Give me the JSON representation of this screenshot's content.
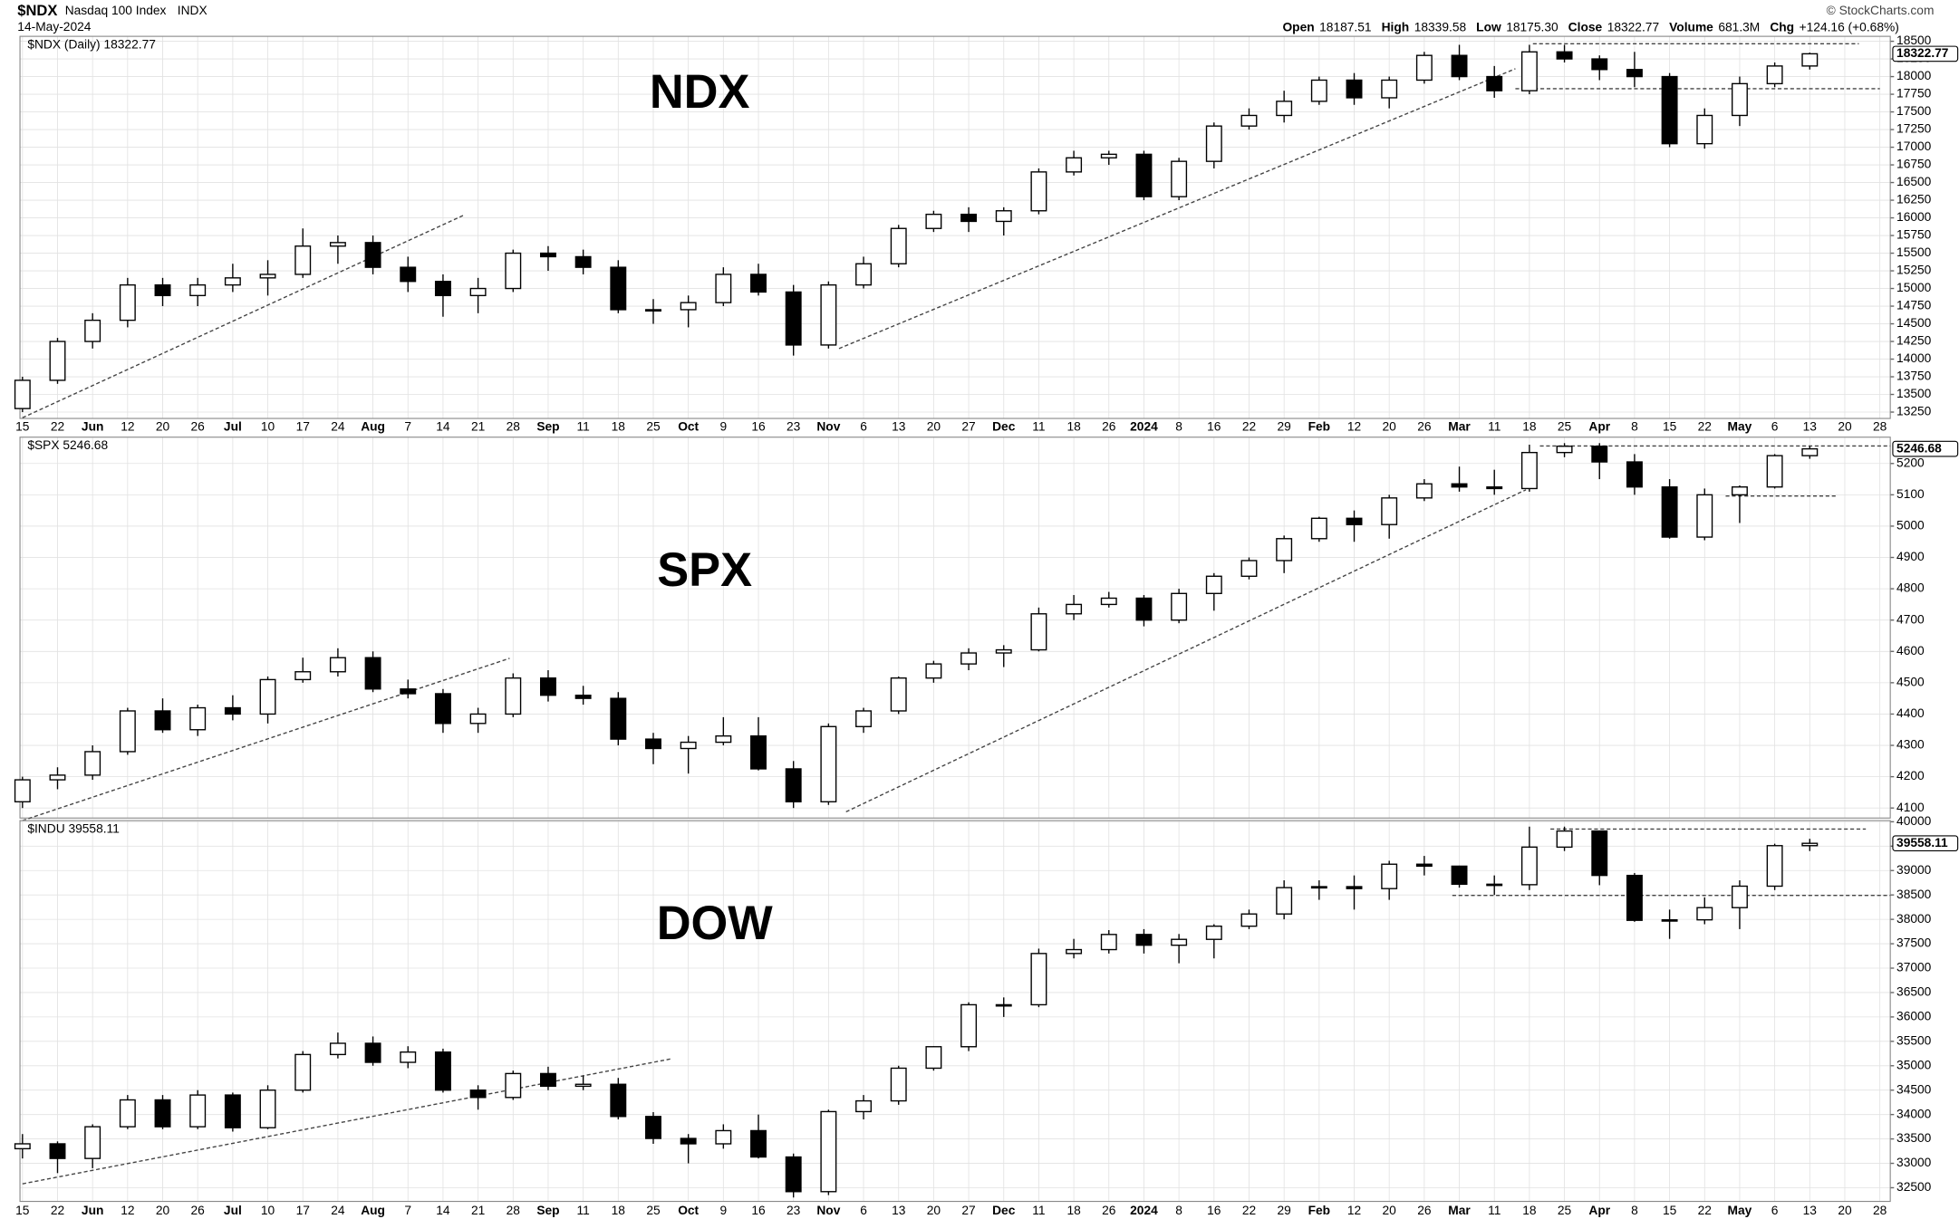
{
  "header": {
    "symbol": "$NDX",
    "name": "Nasdaq 100 Index",
    "exchange": "INDX",
    "date": "14-May-2024",
    "source": "© StockCharts.com",
    "stats": [
      {
        "label": "Open",
        "value": "18187.51"
      },
      {
        "label": "High",
        "value": "18339.58"
      },
      {
        "label": "Low",
        "value": "18175.30"
      },
      {
        "label": "Close",
        "value": "18322.77"
      },
      {
        "label": "Volume",
        "value": "681.3M"
      },
      {
        "label": "Chg",
        "value": "+124.16 (+0.68%)"
      }
    ]
  },
  "chart_data": [
    {
      "type": "candlestick",
      "legend": "$NDX (Daily) 18322.77",
      "annotation": "NDX",
      "up_color": "#ffffff",
      "down_color": "#000000",
      "grid": true,
      "categories": [
        "15",
        "22",
        "Jun",
        "12",
        "20",
        "26",
        "Jul",
        "10",
        "17",
        "24",
        "Aug",
        "7",
        "14",
        "21",
        "28",
        "Sep",
        "11",
        "18",
        "25",
        "Oct",
        "9",
        "16",
        "23",
        "Nov",
        "6",
        "13",
        "20",
        "27",
        "Dec",
        "11",
        "18",
        "26",
        "2024",
        "8",
        "16",
        "22",
        "29",
        "Feb",
        "12",
        "20",
        "26",
        "Mar",
        "11",
        "18",
        "25",
        "Apr",
        "8",
        "15",
        "22",
        "May",
        "6",
        "13",
        "20",
        "28"
      ],
      "ohlc": [
        [
          13300,
          13750,
          13250,
          13700
        ],
        [
          13700,
          14300,
          13650,
          14250
        ],
        [
          14250,
          14650,
          14150,
          14550
        ],
        [
          14550,
          15150,
          14450,
          15050
        ],
        [
          15050,
          15150,
          14750,
          14900
        ],
        [
          14900,
          15150,
          14750,
          15050
        ],
        [
          15050,
          15350,
          14950,
          15150
        ],
        [
          15150,
          15400,
          14900,
          15200
        ],
        [
          15200,
          15850,
          15150,
          15600
        ],
        [
          15600,
          15750,
          15350,
          15650
        ],
        [
          15650,
          15750,
          15200,
          15300
        ],
        [
          15300,
          15450,
          14950,
          15100
        ],
        [
          15100,
          15200,
          14600,
          14900
        ],
        [
          14900,
          15150,
          14650,
          15000
        ],
        [
          15000,
          15550,
          14950,
          15500
        ],
        [
          15500,
          15600,
          15250,
          15450
        ],
        [
          15450,
          15550,
          15200,
          15300
        ],
        [
          15300,
          15400,
          14650,
          14700
        ],
        [
          14700,
          14850,
          14500,
          14700
        ],
        [
          14700,
          14900,
          14450,
          14800
        ],
        [
          14800,
          15300,
          14750,
          15200
        ],
        [
          15200,
          15350,
          14900,
          14950
        ],
        [
          14950,
          15050,
          14050,
          14200
        ],
        [
          14200,
          15100,
          14150,
          15050
        ],
        [
          15050,
          15450,
          15000,
          15350
        ],
        [
          15350,
          15900,
          15300,
          15850
        ],
        [
          15850,
          16100,
          15800,
          16050
        ],
        [
          16050,
          16150,
          15800,
          15950
        ],
        [
          15950,
          16150,
          15750,
          16100
        ],
        [
          16100,
          16700,
          16050,
          16650
        ],
        [
          16650,
          16950,
          16600,
          16850
        ],
        [
          16850,
          16950,
          16750,
          16900
        ],
        [
          16900,
          16950,
          16250,
          16300
        ],
        [
          16300,
          16850,
          16250,
          16800
        ],
        [
          16800,
          17350,
          16700,
          17300
        ],
        [
          17300,
          17550,
          17250,
          17450
        ],
        [
          17450,
          17800,
          17350,
          17650
        ],
        [
          17650,
          18000,
          17600,
          17950
        ],
        [
          17950,
          18050,
          17600,
          17700
        ],
        [
          17700,
          18000,
          17550,
          17950
        ],
        [
          17950,
          18350,
          17900,
          18300
        ],
        [
          18300,
          18450,
          17950,
          18000
        ],
        [
          18000,
          18150,
          17700,
          17800
        ],
        [
          17800,
          18450,
          17750,
          18350
        ],
        [
          18350,
          18450,
          18200,
          18250
        ],
        [
          18250,
          18300,
          17950,
          18100
        ],
        [
          18100,
          18350,
          17850,
          18000
        ],
        [
          18000,
          18050,
          17000,
          17050
        ],
        [
          17050,
          17550,
          16980,
          17450
        ],
        [
          17450,
          18000,
          17300,
          17900
        ],
        [
          17900,
          18200,
          17850,
          18150
        ],
        [
          18150,
          18340,
          18100,
          18322.77
        ],
        null,
        null
      ],
      "ylim": [
        13160,
        18570
      ],
      "yticks": [
        13250,
        13500,
        13750,
        14000,
        14250,
        14500,
        14750,
        15000,
        15250,
        15500,
        15750,
        16000,
        16250,
        16500,
        16750,
        17000,
        17250,
        17500,
        17750,
        18000,
        18250,
        18500
      ],
      "trendlines": [
        {
          "x": [
            0,
            12.6
          ],
          "y": [
            13170,
            16040
          ]
        },
        {
          "x": [
            23.3,
            42.6
          ],
          "y": [
            14150,
            18111
          ]
        },
        {
          "x": [
            43.1,
            52.4
          ],
          "y": [
            18465,
            18465
          ]
        },
        {
          "x": [
            42.6,
            53
          ],
          "y": [
            17828,
            17828
          ]
        }
      ]
    },
    {
      "type": "candlestick",
      "legend": "$SPX 5246.68",
      "annotation": "SPX",
      "up_color": "#ffffff",
      "down_color": "#000000",
      "grid": true,
      "ohlc": [
        [
          4120,
          4200,
          4100,
          4190
        ],
        [
          4190,
          4230,
          4160,
          4205
        ],
        [
          4205,
          4300,
          4190,
          4280
        ],
        [
          4280,
          4420,
          4270,
          4410
        ],
        [
          4410,
          4450,
          4340,
          4350
        ],
        [
          4350,
          4430,
          4330,
          4420
        ],
        [
          4420,
          4460,
          4380,
          4400
        ],
        [
          4400,
          4520,
          4370,
          4510
        ],
        [
          4510,
          4580,
          4500,
          4535
        ],
        [
          4535,
          4610,
          4520,
          4580
        ],
        [
          4580,
          4600,
          4470,
          4480
        ],
        [
          4480,
          4510,
          4450,
          4465
        ],
        [
          4465,
          4480,
          4340,
          4370
        ],
        [
          4370,
          4420,
          4340,
          4400
        ],
        [
          4400,
          4530,
          4390,
          4515
        ],
        [
          4515,
          4540,
          4440,
          4460
        ],
        [
          4460,
          4490,
          4430,
          4450
        ],
        [
          4450,
          4470,
          4300,
          4320
        ],
        [
          4320,
          4340,
          4240,
          4290
        ],
        [
          4290,
          4330,
          4210,
          4310
        ],
        [
          4310,
          4390,
          4300,
          4330
        ],
        [
          4330,
          4390,
          4220,
          4225
        ],
        [
          4225,
          4250,
          4100,
          4120
        ],
        [
          4120,
          4370,
          4110,
          4360
        ],
        [
          4360,
          4420,
          4340,
          4410
        ],
        [
          4410,
          4520,
          4400,
          4515
        ],
        [
          4515,
          4570,
          4500,
          4560
        ],
        [
          4560,
          4610,
          4540,
          4595
        ],
        [
          4595,
          4620,
          4550,
          4605
        ],
        [
          4605,
          4740,
          4600,
          4720
        ],
        [
          4720,
          4780,
          4700,
          4750
        ],
        [
          4750,
          4790,
          4740,
          4770
        ],
        [
          4770,
          4780,
          4680,
          4700
        ],
        [
          4700,
          4800,
          4690,
          4785
        ],
        [
          4785,
          4850,
          4730,
          4840
        ],
        [
          4840,
          4900,
          4830,
          4890
        ],
        [
          4890,
          4970,
          4850,
          4960
        ],
        [
          4960,
          5030,
          4950,
          5025
        ],
        [
          5025,
          5050,
          4950,
          5005
        ],
        [
          5005,
          5100,
          4960,
          5090
        ],
        [
          5090,
          5150,
          5080,
          5135
        ],
        [
          5135,
          5190,
          5110,
          5125
        ],
        [
          5125,
          5180,
          5100,
          5120
        ],
        [
          5120,
          5260,
          5110,
          5235
        ],
        [
          5235,
          5265,
          5220,
          5255
        ],
        [
          5255,
          5265,
          5150,
          5205
        ],
        [
          5205,
          5230,
          5100,
          5125
        ],
        [
          5125,
          5150,
          4960,
          4965
        ],
        [
          4965,
          5120,
          4955,
          5100
        ],
        [
          5100,
          5130,
          5010,
          5125
        ],
        [
          5125,
          5230,
          5120,
          5225
        ],
        [
          5225,
          5255,
          5215,
          5246.68
        ],
        null,
        null
      ],
      "ylim": [
        4068,
        5284
      ],
      "yticks": [
        4100,
        4200,
        4300,
        4400,
        4500,
        4600,
        4700,
        4800,
        4900,
        5000,
        5100,
        5200
      ],
      "trendlines": [
        {
          "x": [
            0,
            13.9
          ],
          "y": [
            4060,
            4578
          ]
        },
        {
          "x": [
            23.5,
            42.9
          ],
          "y": [
            4088,
            5116
          ]
        },
        {
          "x": [
            43.3,
            53.3
          ],
          "y": [
            5256,
            5256
          ]
        },
        {
          "x": [
            48.6,
            51.8
          ],
          "y": [
            5096,
            5096
          ]
        }
      ]
    },
    {
      "type": "candlestick",
      "legend": "$INDU 39558.11",
      "annotation": "DOW",
      "up_color": "#ffffff",
      "down_color": "#000000",
      "grid": true,
      "categories": [
        "15",
        "22",
        "Jun",
        "12",
        "20",
        "26",
        "Jul",
        "10",
        "17",
        "24",
        "Aug",
        "7",
        "14",
        "21",
        "28",
        "Sep",
        "11",
        "18",
        "25",
        "Oct",
        "9",
        "16",
        "23",
        "Nov",
        "6",
        "13",
        "20",
        "27",
        "Dec",
        "11",
        "18",
        "26",
        "2024",
        "8",
        "16",
        "22",
        "29",
        "Feb",
        "12",
        "20",
        "26",
        "Mar",
        "11",
        "18",
        "25",
        "Apr",
        "8",
        "15",
        "22",
        "May",
        "6",
        "13",
        "20",
        "28"
      ],
      "ohlc": [
        [
          33300,
          33600,
          33100,
          33400
        ],
        [
          33400,
          33450,
          32800,
          33100
        ],
        [
          33100,
          33800,
          32900,
          33750
        ],
        [
          33750,
          34400,
          33700,
          34300
        ],
        [
          34300,
          34400,
          33700,
          33750
        ],
        [
          33750,
          34500,
          33700,
          34400
        ],
        [
          34400,
          34450,
          33650,
          33730
        ],
        [
          33730,
          34600,
          33700,
          34500
        ],
        [
          34500,
          35300,
          34450,
          35230
        ],
        [
          35230,
          35680,
          35150,
          35460
        ],
        [
          35460,
          35600,
          35000,
          35070
        ],
        [
          35070,
          35400,
          34950,
          35280
        ],
        [
          35280,
          35350,
          34450,
          34500
        ],
        [
          34500,
          34600,
          34100,
          34350
        ],
        [
          34350,
          34900,
          34300,
          34840
        ],
        [
          34840,
          34980,
          34500,
          34580
        ],
        [
          34580,
          34800,
          34500,
          34620
        ],
        [
          34620,
          34750,
          33900,
          33960
        ],
        [
          33960,
          34050,
          33400,
          33510
        ],
        [
          33510,
          33600,
          33000,
          33400
        ],
        [
          33400,
          33800,
          33300,
          33670
        ],
        [
          33670,
          34000,
          33100,
          33130
        ],
        [
          33130,
          33200,
          32300,
          32420
        ],
        [
          32420,
          34100,
          32350,
          34060
        ],
        [
          34060,
          34400,
          33900,
          34280
        ],
        [
          34280,
          35000,
          34200,
          34950
        ],
        [
          34950,
          35400,
          34900,
          35390
        ],
        [
          35390,
          36300,
          35300,
          36250
        ],
        [
          36250,
          36400,
          36000,
          36250
        ],
        [
          36250,
          37400,
          36200,
          37300
        ],
        [
          37300,
          37600,
          37200,
          37380
        ],
        [
          37380,
          37780,
          37300,
          37690
        ],
        [
          37690,
          37800,
          37300,
          37470
        ],
        [
          37470,
          37700,
          37100,
          37590
        ],
        [
          37590,
          37900,
          37200,
          37860
        ],
        [
          37860,
          38200,
          37800,
          38110
        ],
        [
          38110,
          38800,
          38000,
          38650
        ],
        [
          38650,
          38800,
          38400,
          38670
        ],
        [
          38670,
          38900,
          38200,
          38630
        ],
        [
          38630,
          39200,
          38400,
          39130
        ],
        [
          39130,
          39300,
          38900,
          39090
        ],
        [
          39090,
          39100,
          38650,
          38720
        ],
        [
          38720,
          38900,
          38500,
          38710
        ],
        [
          38710,
          39900,
          38600,
          39480
        ],
        [
          39480,
          39900,
          39400,
          39810
        ],
        [
          39810,
          39820,
          38700,
          38900
        ],
        [
          38900,
          38950,
          37950,
          37980
        ],
        [
          37980,
          38200,
          37600,
          37990
        ],
        [
          37990,
          38450,
          37900,
          38240
        ],
        [
          38240,
          38800,
          37800,
          38680
        ],
        [
          38680,
          39550,
          38600,
          39510
        ],
        [
          39510,
          39650,
          39400,
          39558.11
        ],
        null,
        null
      ],
      "ylim": [
        32220,
        40025
      ],
      "yticks": [
        32500,
        33000,
        33500,
        34000,
        34500,
        35000,
        35500,
        36000,
        36500,
        37000,
        37500,
        38000,
        38500,
        39000,
        39500,
        40000
      ],
      "trendlines": [
        {
          "x": [
            0,
            18.5
          ],
          "y": [
            32580,
            35140
          ]
        },
        {
          "x": [
            43.6,
            52.6
          ],
          "y": [
            39850,
            39850
          ]
        },
        {
          "x": [
            40.8,
            53.3
          ],
          "y": [
            38490,
            38490
          ]
        }
      ]
    }
  ]
}
